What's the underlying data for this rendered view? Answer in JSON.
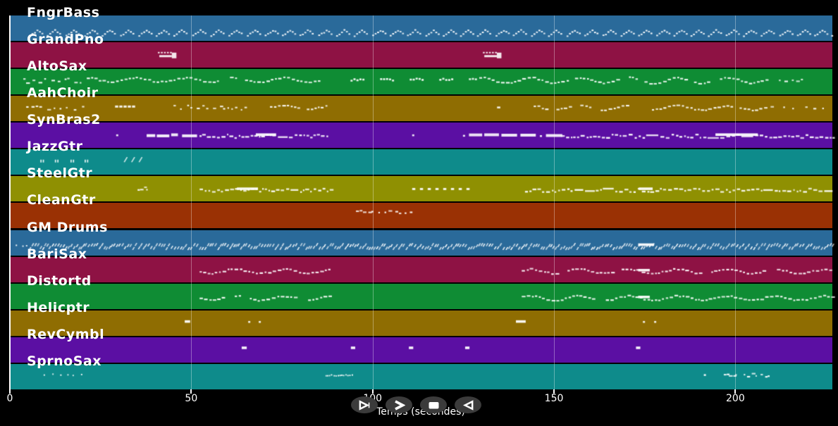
{
  "axis": {
    "label": "Temps (secondes)",
    "ticks": [
      0,
      50,
      100,
      150,
      200
    ],
    "xmin": 0,
    "xmax": 227
  },
  "controls": {
    "buttons": [
      {
        "name": "play",
        "icon": "play-triangle-icon"
      },
      {
        "name": "fast-forward",
        "icon": "chevron-right-icon"
      },
      {
        "name": "stop",
        "icon": "stop-square-icon"
      },
      {
        "name": "rewind",
        "icon": "triangle-left-icon"
      }
    ]
  },
  "colors": {
    "background": "#000000",
    "note": "#ffffff",
    "text": "#ffffff",
    "button_bg": "#3b3b3b",
    "gridline": "rgba(255,255,255,0.35)"
  },
  "seed": 7,
  "chart_data": {
    "type": "timeline",
    "title": "",
    "xlabel": "Temps (secondes)",
    "x_ticks": [
      0,
      50,
      100,
      150,
      200
    ],
    "x_range_seconds": [
      0,
      227
    ],
    "legend_position": "left-labels",
    "grid": true,
    "tracks": [
      {
        "name": "FngrBass",
        "color": "#2a6a9a",
        "regions": [
          {
            "style": "zigzag",
            "t0": 5.3,
            "t1": 226.8,
            "y": 0.66,
            "amp": 6
          }
        ]
      },
      {
        "name": "GrandPno",
        "color": "#8e1244",
        "regions": [
          {
            "style": "cluster",
            "t0": 40.8,
            "t1": 46.2,
            "y": 0.38
          },
          {
            "style": "cluster",
            "t0": 130.4,
            "t1": 135.8,
            "y": 0.38
          }
        ]
      },
      {
        "name": "AltoSax",
        "color": "#0f8c34",
        "regions": [
          {
            "style": "scatter",
            "t0": 3.7,
            "t1": 20.0,
            "y": 0.42,
            "amp": 4,
            "step": 7
          },
          {
            "style": "wave",
            "t0": 21.2,
            "t1": 87.6,
            "y": 0.4,
            "amp": 3,
            "step": 4.5
          },
          {
            "style": "groups",
            "t0": 93.9,
            "t1": 128.4,
            "y": 0.38,
            "amp": 1.5
          },
          {
            "style": "wave",
            "t0": 129.4,
            "t1": 209.1,
            "y": 0.42,
            "amp": 4,
            "step": 4.5
          },
          {
            "style": "scatter",
            "t0": 212.0,
            "t1": 218.4,
            "y": 0.4,
            "amp": 2,
            "step": 12
          }
        ]
      },
      {
        "name": "AahChoir",
        "color": "#8f6d02",
        "regions": [
          {
            "style": "scatter",
            "t0": 4.5,
            "t1": 21.0,
            "y": 0.45,
            "amp": 4,
            "step": 8
          },
          {
            "style": "dashes",
            "t0": 29.0,
            "t1": 34.6,
            "y": 0.42,
            "step": 6
          },
          {
            "style": "scatter",
            "t0": 45.1,
            "t1": 66.3,
            "y": 0.44,
            "amp": 3.5,
            "step": 7
          },
          {
            "style": "wave",
            "t0": 71.7,
            "t1": 87.6,
            "y": 0.42,
            "amp": 3,
            "step": 5
          },
          {
            "style": "dot",
            "t0": 134.3,
            "t1": 135.2,
            "y": 0.42
          },
          {
            "style": "wave",
            "t0": 144.4,
            "t1": 170.2,
            "y": 0.44,
            "amp": 3,
            "step": 5
          },
          {
            "style": "wave",
            "t0": 177.0,
            "t1": 208.1,
            "y": 0.44,
            "amp": 3,
            "step": 5
          },
          {
            "style": "scatter",
            "t0": 209.7,
            "t1": 224.6,
            "y": 0.42,
            "amp": 2,
            "step": 13
          }
        ]
      },
      {
        "name": "SynBras2",
        "color": "#5b0fa3",
        "regions": [
          {
            "style": "dot",
            "t0": 29.3,
            "t1": 29.7,
            "y": 0.46
          },
          {
            "style": "blocks",
            "t0": 37.7,
            "t1": 53.0,
            "y": 0.5
          },
          {
            "style": "dense",
            "t0": 53.0,
            "t1": 87.6,
            "y": 0.5,
            "amp": 2.5,
            "step": 4
          },
          {
            "style": "bar",
            "t0": 67.8,
            "t1": 73.4,
            "y": 0.47
          },
          {
            "style": "dot",
            "t0": 110.9,
            "t1": 111.3,
            "y": 0.46
          },
          {
            "style": "blocks",
            "t0": 124.9,
            "t1": 152.0,
            "y": 0.5
          },
          {
            "style": "dense",
            "t0": 152.0,
            "t1": 226.8,
            "y": 0.5,
            "amp": 2.5,
            "step": 4
          },
          {
            "style": "bar",
            "t0": 194.5,
            "t1": 206.2,
            "y": 0.47
          }
        ]
      },
      {
        "name": "JazzGtr",
        "color": "#0e8b8b",
        "regions": [
          {
            "style": "pair",
            "t0": 8.4,
            "y": 0.4
          },
          {
            "style": "pair",
            "t0": 12.4,
            "y": 0.4
          },
          {
            "style": "pair",
            "t0": 16.7,
            "y": 0.4
          },
          {
            "style": "pair",
            "t0": 20.6,
            "y": 0.4
          },
          {
            "style": "slash3",
            "t0": 31.3,
            "t1": 35.4,
            "y": 0.3
          }
        ]
      },
      {
        "name": "SteelGtr",
        "color": "#8f9002",
        "regions": [
          {
            "style": "scatter",
            "t0": 35.2,
            "t1": 38.1,
            "y": 0.48,
            "amp": 3,
            "step": 4
          },
          {
            "style": "dense",
            "t0": 52.3,
            "t1": 88.6,
            "y": 0.52,
            "amp": 2.5,
            "step": 4
          },
          {
            "style": "bar",
            "t0": 62.6,
            "t1": 68.4,
            "y": 0.49
          },
          {
            "style": "dashes",
            "t0": 110.9,
            "t1": 125.9,
            "y": 0.5,
            "step": 11
          },
          {
            "style": "dense",
            "t0": 142.0,
            "t1": 226.8,
            "y": 0.52,
            "amp": 2.5,
            "step": 4
          },
          {
            "style": "bar",
            "t0": 173.4,
            "t1": 177.2,
            "y": 0.49
          }
        ]
      },
      {
        "name": "CleanGtr",
        "color": "#9a3104",
        "regions": [
          {
            "style": "scatter",
            "t0": 95.4,
            "t1": 111.5,
            "y": 0.32,
            "amp": 2,
            "step": 8
          }
        ]
      },
      {
        "name": "GM Drums",
        "color": "#2a6a9a",
        "regions": [
          {
            "style": "dots",
            "t0": 1.6,
            "t1": 5.1,
            "y": 0.6,
            "step": 8
          },
          {
            "style": "drums",
            "t0": 5.1,
            "t1": 226.8,
            "y": 0.62,
            "amp": 3
          },
          {
            "style": "bar",
            "t0": 173.2,
            "t1": 177.6,
            "y": 0.58
          }
        ]
      },
      {
        "name": "BariSax",
        "color": "#8e1244",
        "regions": [
          {
            "style": "wave",
            "t0": 52.3,
            "t1": 88.6,
            "y": 0.55,
            "amp": 3,
            "step": 4.5
          },
          {
            "style": "wave",
            "t0": 141.1,
            "t1": 226.8,
            "y": 0.55,
            "amp": 3,
            "step": 4.5
          },
          {
            "style": "bar",
            "t0": 173.2,
            "t1": 176.4,
            "y": 0.53
          }
        ]
      },
      {
        "name": "Distortd",
        "color": "#0f8c34",
        "regions": [
          {
            "style": "wave",
            "t0": 52.3,
            "t1": 88.6,
            "y": 0.55,
            "amp": 3,
            "step": 4.5
          },
          {
            "style": "wave",
            "t0": 141.1,
            "t1": 226.8,
            "y": 0.55,
            "amp": 3,
            "step": 4.5
          },
          {
            "style": "bar",
            "t0": 173.2,
            "t1": 176.4,
            "y": 0.53
          }
        ]
      },
      {
        "name": "Helicptr",
        "color": "#8f6d02",
        "regions": [
          {
            "style": "bar",
            "t0": 48.2,
            "t1": 49.7,
            "y": 0.44
          },
          {
            "style": "dot",
            "t0": 65.7,
            "t1": 66.1,
            "y": 0.42
          },
          {
            "style": "dot",
            "t0": 68.6,
            "t1": 69.0,
            "y": 0.42
          },
          {
            "style": "bar",
            "t0": 139.5,
            "t1": 142.2,
            "y": 0.44
          },
          {
            "style": "dot",
            "t0": 174.5,
            "t1": 174.9,
            "y": 0.42
          },
          {
            "style": "dot",
            "t0": 177.6,
            "t1": 178.0,
            "y": 0.42
          }
        ]
      },
      {
        "name": "RevCymbl",
        "color": "#5b0fa3",
        "regions": [
          {
            "style": "bar",
            "t0": 63.9,
            "t1": 65.3,
            "y": 0.42
          },
          {
            "style": "bar",
            "t0": 94.0,
            "t1": 95.2,
            "y": 0.42
          },
          {
            "style": "bar",
            "t0": 110.0,
            "t1": 111.2,
            "y": 0.42
          },
          {
            "style": "bar",
            "t0": 125.5,
            "t1": 126.7,
            "y": 0.42
          },
          {
            "style": "bar",
            "t0": 172.6,
            "t1": 173.8,
            "y": 0.42
          }
        ]
      },
      {
        "name": "SprnoSax",
        "color": "#0e8b8b",
        "regions": [
          {
            "style": "dots",
            "t0": 9.3,
            "t1": 19.6,
            "y": 0.4,
            "step": 9
          },
          {
            "style": "dots",
            "t0": 87.0,
            "t1": 94.5,
            "y": 0.42,
            "step": 3
          },
          {
            "style": "dot",
            "t0": 191.3,
            "t1": 191.7,
            "y": 0.4
          },
          {
            "style": "scatter",
            "t0": 196.8,
            "t1": 200.3,
            "y": 0.4,
            "amp": 2,
            "step": 5
          },
          {
            "style": "scatter",
            "t0": 202.3,
            "t1": 209.1,
            "y": 0.42,
            "amp": 3,
            "step": 5
          }
        ]
      }
    ]
  }
}
